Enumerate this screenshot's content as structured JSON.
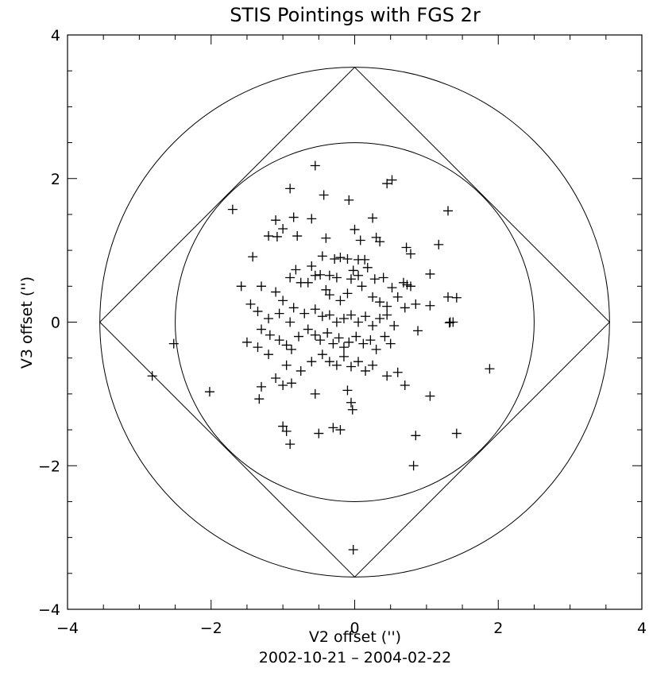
{
  "chart_data": {
    "type": "scatter",
    "title": "STIS Pointings with FGS 2r",
    "xlabel": "V2 offset ('')",
    "ylabel": "V3 offset ('')",
    "subtitle": "2002-10-21 – 2004-02-22",
    "xlim": [
      -4,
      4
    ],
    "ylim": [
      -4,
      4
    ],
    "xticks": [
      -4,
      -2,
      0,
      2,
      4
    ],
    "yticks": [
      -4,
      -2,
      0,
      2,
      4
    ],
    "xtick_labels": [
      "−4",
      "−2",
      "0",
      "2",
      "4"
    ],
    "ytick_labels": [
      "−4",
      "−2",
      "0",
      "2",
      "4"
    ],
    "marker": "plus",
    "grid": false,
    "outer_circle_radius": 3.55,
    "inner_circle_radius": 2.5,
    "diamond_half_diagonal": 3.55,
    "points": [
      [
        -0.55,
        2.18
      ],
      [
        -0.43,
        1.77
      ],
      [
        -0.9,
        1.86
      ],
      [
        0.45,
        1.93
      ],
      [
        0.52,
        1.98
      ],
      [
        -1.7,
        1.57
      ],
      [
        1.3,
        1.55
      ],
      [
        -0.85,
        1.46
      ],
      [
        -0.6,
        1.44
      ],
      [
        -0.08,
        1.7
      ],
      [
        0.25,
        1.45
      ],
      [
        -1.1,
        1.42
      ],
      [
        -1.08,
        1.19
      ],
      [
        -1.2,
        1.2
      ],
      [
        -0.8,
        1.2
      ],
      [
        -0.4,
        1.17
      ],
      [
        0.0,
        1.29
      ],
      [
        0.08,
        1.14
      ],
      [
        0.3,
        1.18
      ],
      [
        0.35,
        1.12
      ],
      [
        -1.0,
        1.3
      ],
      [
        1.17,
        1.08
      ],
      [
        0.72,
        1.04
      ],
      [
        0.78,
        0.95
      ],
      [
        -1.42,
        0.91
      ],
      [
        -0.45,
        0.92
      ],
      [
        -0.28,
        0.88
      ],
      [
        -0.2,
        0.9
      ],
      [
        -0.1,
        0.88
      ],
      [
        0.05,
        0.87
      ],
      [
        0.14,
        0.87
      ],
      [
        0.18,
        0.76
      ],
      [
        -0.02,
        0.72
      ],
      [
        -0.6,
        0.78
      ],
      [
        -0.82,
        0.73
      ],
      [
        -1.58,
        0.5
      ],
      [
        -1.3,
        0.5
      ],
      [
        -1.1,
        0.42
      ],
      [
        -0.9,
        0.62
      ],
      [
        -0.55,
        0.65
      ],
      [
        -0.48,
        0.66
      ],
      [
        -0.35,
        0.65
      ],
      [
        -0.25,
        0.62
      ],
      [
        -0.05,
        0.6
      ],
      [
        0.05,
        0.65
      ],
      [
        0.28,
        0.6
      ],
      [
        0.4,
        0.62
      ],
      [
        0.52,
        0.48
      ],
      [
        0.68,
        0.55
      ],
      [
        0.73,
        0.52
      ],
      [
        0.78,
        0.5
      ],
      [
        1.05,
        0.67
      ],
      [
        1.3,
        0.35
      ],
      [
        1.42,
        0.34
      ],
      [
        1.05,
        0.23
      ],
      [
        0.85,
        0.25
      ],
      [
        -1.45,
        0.25
      ],
      [
        -1.35,
        0.15
      ],
      [
        -1.0,
        0.3
      ],
      [
        -0.85,
        0.2
      ],
      [
        -0.65,
        0.55
      ],
      [
        -0.75,
        0.55
      ],
      [
        -0.4,
        0.45
      ],
      [
        -0.35,
        0.38
      ],
      [
        -0.2,
        0.3
      ],
      [
        -0.1,
        0.4
      ],
      [
        0.1,
        0.5
      ],
      [
        0.25,
        0.35
      ],
      [
        0.35,
        0.28
      ],
      [
        0.45,
        0.22
      ],
      [
        0.6,
        0.35
      ],
      [
        0.7,
        0.2
      ],
      [
        -1.2,
        0.05
      ],
      [
        -1.05,
        0.12
      ],
      [
        -0.9,
        0.0
      ],
      [
        -0.7,
        0.12
      ],
      [
        -0.55,
        0.18
      ],
      [
        -0.45,
        0.08
      ],
      [
        -0.35,
        0.1
      ],
      [
        -0.25,
        0.0
      ],
      [
        -0.15,
        0.05
      ],
      [
        -0.05,
        0.1
      ],
      [
        0.05,
        0.0
      ],
      [
        0.15,
        0.08
      ],
      [
        0.25,
        -0.05
      ],
      [
        0.35,
        0.05
      ],
      [
        0.45,
        0.1
      ],
      [
        0.55,
        -0.05
      ],
      [
        1.33,
        0.0
      ],
      [
        1.37,
        0.0
      ],
      [
        1.32,
        -0.01
      ],
      [
        -1.3,
        -0.1
      ],
      [
        -1.18,
        -0.18
      ],
      [
        -1.05,
        -0.25
      ],
      [
        -0.95,
        -0.32
      ],
      [
        -0.88,
        -0.38
      ],
      [
        -0.78,
        -0.2
      ],
      [
        -0.65,
        -0.1
      ],
      [
        -0.55,
        -0.18
      ],
      [
        -0.48,
        -0.25
      ],
      [
        -0.38,
        -0.15
      ],
      [
        -0.3,
        -0.3
      ],
      [
        -0.22,
        -0.22
      ],
      [
        -0.15,
        -0.35
      ],
      [
        -0.08,
        -0.28
      ],
      [
        0.02,
        -0.2
      ],
      [
        0.12,
        -0.3
      ],
      [
        0.22,
        -0.25
      ],
      [
        0.3,
        -0.38
      ],
      [
        0.42,
        -0.2
      ],
      [
        0.5,
        -0.3
      ],
      [
        0.88,
        -0.12
      ],
      [
        -1.5,
        -0.28
      ],
      [
        -1.35,
        -0.35
      ],
      [
        -1.2,
        -0.45
      ],
      [
        -0.95,
        -0.6
      ],
      [
        -0.75,
        -0.68
      ],
      [
        -0.6,
        -0.55
      ],
      [
        -0.45,
        -0.45
      ],
      [
        -0.35,
        -0.55
      ],
      [
        -0.25,
        -0.6
      ],
      [
        -0.15,
        -0.48
      ],
      [
        -0.05,
        -0.62
      ],
      [
        0.05,
        -0.55
      ],
      [
        0.15,
        -0.68
      ],
      [
        0.25,
        -0.6
      ],
      [
        0.45,
        -0.75
      ],
      [
        0.6,
        -0.7
      ],
      [
        0.7,
        -0.88
      ],
      [
        1.88,
        -0.65
      ],
      [
        -2.52,
        -0.3
      ],
      [
        -2.82,
        -0.75
      ],
      [
        -2.02,
        -0.97
      ],
      [
        -1.3,
        -0.9
      ],
      [
        -1.1,
        -0.78
      ],
      [
        -1.0,
        -0.88
      ],
      [
        -0.88,
        -0.85
      ],
      [
        -0.55,
        -1.0
      ],
      [
        -0.1,
        -0.95
      ],
      [
        -0.05,
        -1.12
      ],
      [
        -0.03,
        -1.22
      ],
      [
        1.05,
        -1.03
      ],
      [
        -1.33,
        -1.07
      ],
      [
        -1.0,
        -1.45
      ],
      [
        -0.95,
        -1.52
      ],
      [
        -0.9,
        -1.7
      ],
      [
        -0.5,
        -1.55
      ],
      [
        -0.3,
        -1.47
      ],
      [
        -0.2,
        -1.5
      ],
      [
        0.85,
        -1.58
      ],
      [
        1.42,
        -1.55
      ],
      [
        0.82,
        -2.0
      ],
      [
        -0.02,
        -3.17
      ]
    ]
  }
}
